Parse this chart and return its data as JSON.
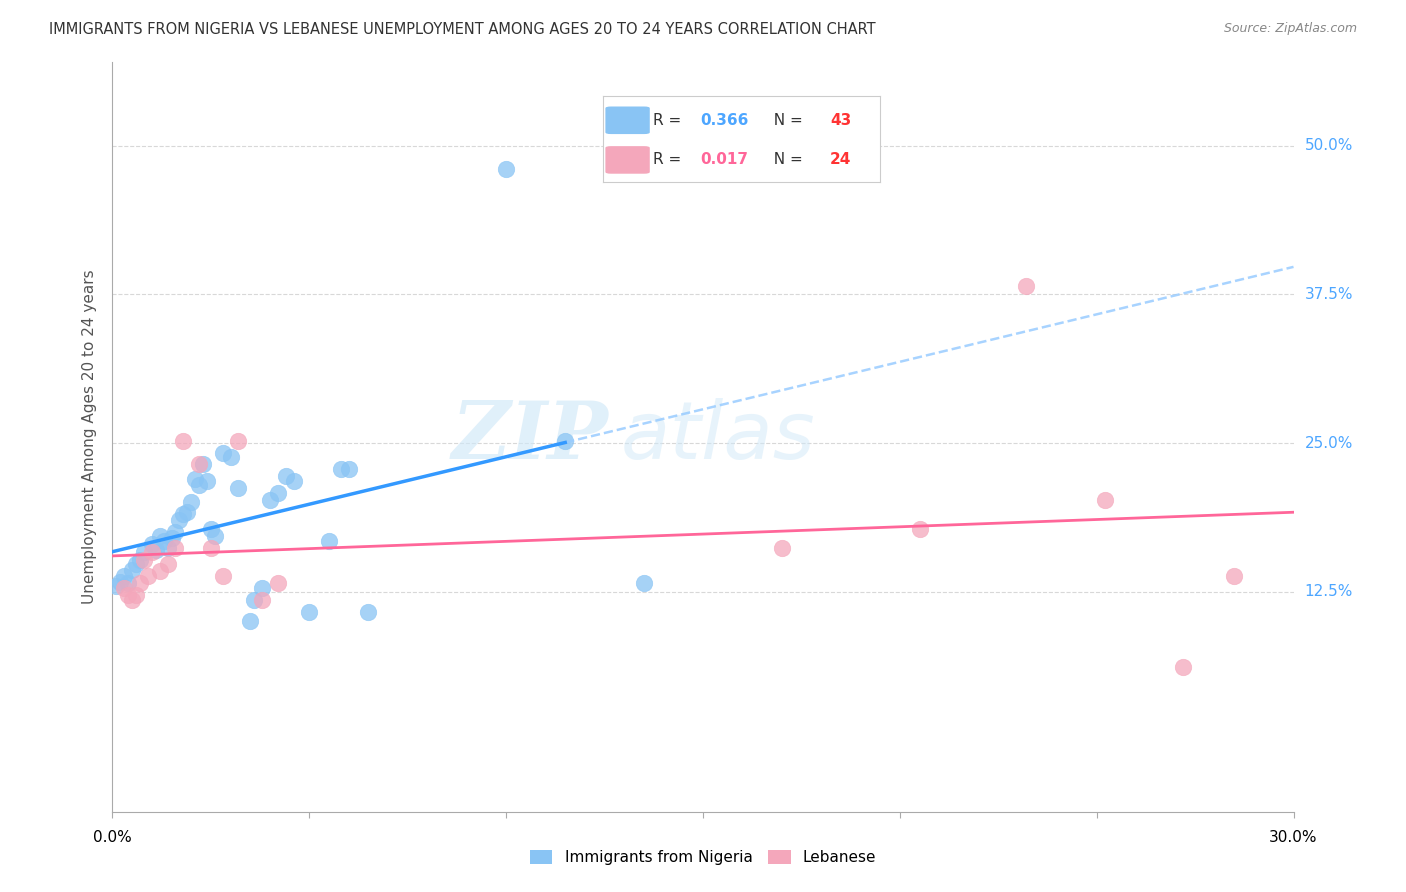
{
  "title": "IMMIGRANTS FROM NIGERIA VS LEBANESE UNEMPLOYMENT AMONG AGES 20 TO 24 YEARS CORRELATION CHART",
  "source": "Source: ZipAtlas.com",
  "ylabel": "Unemployment Among Ages 20 to 24 years",
  "ytick_labels": [
    "12.5%",
    "25.0%",
    "37.5%",
    "50.0%"
  ],
  "ytick_values": [
    0.125,
    0.25,
    0.375,
    0.5
  ],
  "xmin": 0.0,
  "xmax": 0.3,
  "ymin": -0.06,
  "ymax": 0.57,
  "nigeria_color": "#89c4f4",
  "lebanese_color": "#f4a7bb",
  "nigeria_line_color": "#3399ff",
  "lebanese_line_color": "#ff6699",
  "nigeria_R": "0.366",
  "nigeria_N": "43",
  "lebanese_R": "0.017",
  "lebanese_N": "24",
  "nigeria_scatter_x": [
    0.001,
    0.002,
    0.003,
    0.004,
    0.005,
    0.006,
    0.007,
    0.008,
    0.01,
    0.011,
    0.012,
    0.013,
    0.014,
    0.015,
    0.016,
    0.017,
    0.018,
    0.019,
    0.02,
    0.021,
    0.022,
    0.023,
    0.024,
    0.025,
    0.026,
    0.028,
    0.03,
    0.032,
    0.035,
    0.036,
    0.038,
    0.04,
    0.042,
    0.044,
    0.046,
    0.05,
    0.055,
    0.058,
    0.06,
    0.065,
    0.1,
    0.115,
    0.135
  ],
  "nigeria_scatter_y": [
    0.13,
    0.133,
    0.138,
    0.132,
    0.143,
    0.148,
    0.152,
    0.158,
    0.165,
    0.16,
    0.172,
    0.168,
    0.162,
    0.17,
    0.175,
    0.185,
    0.19,
    0.192,
    0.2,
    0.22,
    0.215,
    0.232,
    0.218,
    0.178,
    0.172,
    0.242,
    0.238,
    0.212,
    0.1,
    0.118,
    0.128,
    0.202,
    0.208,
    0.222,
    0.218,
    0.108,
    0.168,
    0.228,
    0.228,
    0.108,
    0.48,
    0.252,
    0.132
  ],
  "lebanese_scatter_x": [
    0.003,
    0.004,
    0.005,
    0.006,
    0.007,
    0.008,
    0.009,
    0.01,
    0.012,
    0.014,
    0.016,
    0.018,
    0.022,
    0.025,
    0.028,
    0.032,
    0.038,
    0.042,
    0.17,
    0.205,
    0.232,
    0.252,
    0.272,
    0.285
  ],
  "lebanese_scatter_y": [
    0.128,
    0.122,
    0.118,
    0.122,
    0.132,
    0.152,
    0.138,
    0.158,
    0.142,
    0.148,
    0.162,
    0.252,
    0.232,
    0.162,
    0.138,
    0.252,
    0.118,
    0.132,
    0.162,
    0.178,
    0.382,
    0.202,
    0.062,
    0.138
  ],
  "watermark_zip": "ZIP",
  "watermark_atlas": "atlas",
  "grid_color": "#d8d8d8",
  "grid_linestyle": "--",
  "background_color": "#ffffff",
  "title_fontsize": 10.5,
  "right_tick_color": "#4da6ff",
  "legend_box_color": "#ffffff",
  "legend_box_edge": "#cccccc",
  "nigeria_legend_R_color": "#4da6ff",
  "nigeria_legend_N_color": "#ff3333",
  "lebanese_legend_R_color": "#ff6699",
  "lebanese_legend_N_color": "#ff3333"
}
